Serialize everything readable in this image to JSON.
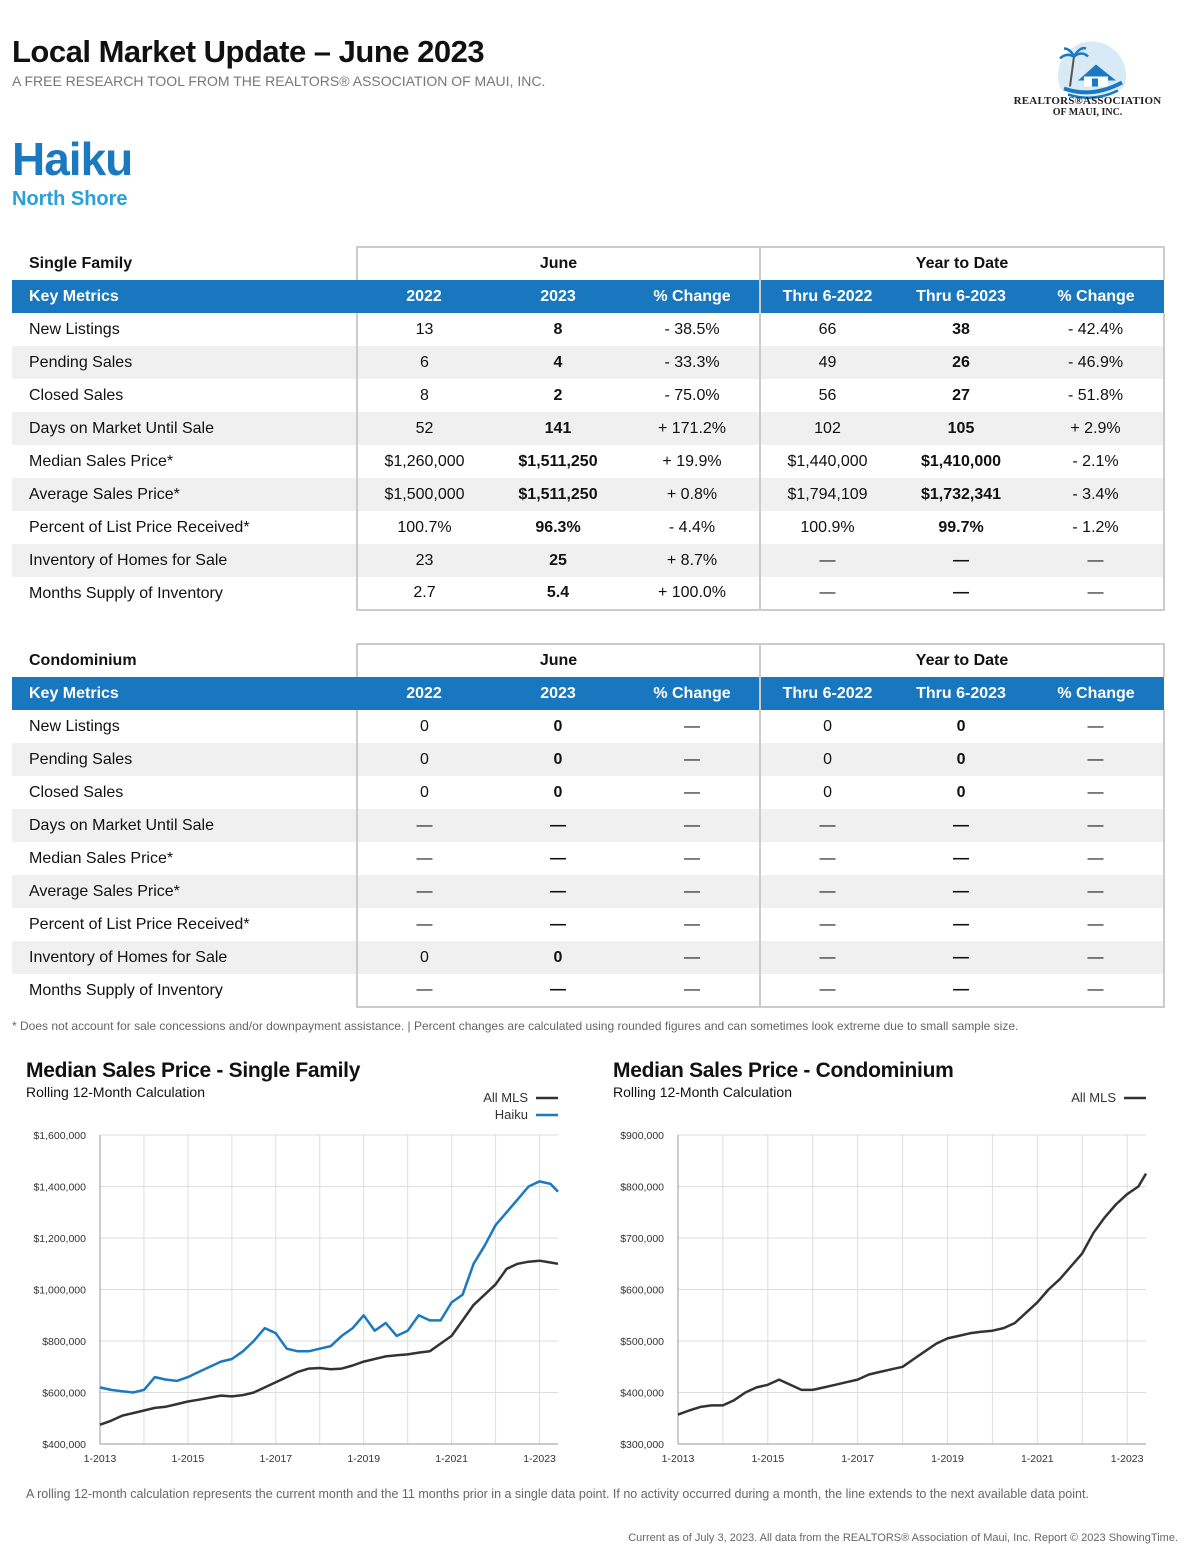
{
  "header": {
    "title": "Local Market Update – June 2023",
    "subtitle": "A FREE RESEARCH TOOL FROM THE REALTORS® ASSOCIATION OF MAUI, INC.",
    "logo_line1": "REALTORS®ASSOCIATION",
    "logo_line2": "OF MAUI, INC."
  },
  "location": {
    "area": "Haiku",
    "region": "North Shore"
  },
  "table_labels": {
    "june": "June",
    "ytd": "Year to Date",
    "key_metrics": "Key Metrics",
    "col_2022": "2022",
    "col_2023": "2023",
    "col_pct": "% Change",
    "col_thru2022": "Thru 6-2022",
    "col_thru2023": "Thru 6-2023"
  },
  "single_family": {
    "name": "Single Family",
    "rows": [
      {
        "label": "New Listings",
        "v2022": "13",
        "v2023": "8",
        "pct": "- 38.5%",
        "ytd2022": "66",
        "ytd2023": "38",
        "ytdpct": "- 42.4%"
      },
      {
        "label": "Pending Sales",
        "v2022": "6",
        "v2023": "4",
        "pct": "- 33.3%",
        "ytd2022": "49",
        "ytd2023": "26",
        "ytdpct": "- 46.9%"
      },
      {
        "label": "Closed Sales",
        "v2022": "8",
        "v2023": "2",
        "pct": "- 75.0%",
        "ytd2022": "56",
        "ytd2023": "27",
        "ytdpct": "- 51.8%"
      },
      {
        "label": "Days on Market Until Sale",
        "v2022": "52",
        "v2023": "141",
        "pct": "+ 171.2%",
        "ytd2022": "102",
        "ytd2023": "105",
        "ytdpct": "+ 2.9%"
      },
      {
        "label": "Median Sales Price*",
        "v2022": "$1,260,000",
        "v2023": "$1,511,250",
        "pct": "+ 19.9%",
        "ytd2022": "$1,440,000",
        "ytd2023": "$1,410,000",
        "ytdpct": "- 2.1%"
      },
      {
        "label": "Average Sales Price*",
        "v2022": "$1,500,000",
        "v2023": "$1,511,250",
        "pct": "+ 0.8%",
        "ytd2022": "$1,794,109",
        "ytd2023": "$1,732,341",
        "ytdpct": "- 3.4%"
      },
      {
        "label": "Percent of List Price Received*",
        "v2022": "100.7%",
        "v2023": "96.3%",
        "pct": "- 4.4%",
        "ytd2022": "100.9%",
        "ytd2023": "99.7%",
        "ytdpct": "- 1.2%"
      },
      {
        "label": "Inventory of Homes for Sale",
        "v2022": "23",
        "v2023": "25",
        "pct": "+ 8.7%",
        "ytd2022": "—",
        "ytd2023": "—",
        "ytdpct": "—"
      },
      {
        "label": "Months Supply of Inventory",
        "v2022": "2.7",
        "v2023": "5.4",
        "pct": "+ 100.0%",
        "ytd2022": "—",
        "ytd2023": "—",
        "ytdpct": "—"
      }
    ]
  },
  "condominium": {
    "name": "Condominium",
    "rows": [
      {
        "label": "New Listings",
        "v2022": "0",
        "v2023": "0",
        "pct": "—",
        "ytd2022": "0",
        "ytd2023": "0",
        "ytdpct": "—"
      },
      {
        "label": "Pending Sales",
        "v2022": "0",
        "v2023": "0",
        "pct": "—",
        "ytd2022": "0",
        "ytd2023": "0",
        "ytdpct": "—"
      },
      {
        "label": "Closed Sales",
        "v2022": "0",
        "v2023": "0",
        "pct": "—",
        "ytd2022": "0",
        "ytd2023": "0",
        "ytdpct": "—"
      },
      {
        "label": "Days on Market Until Sale",
        "v2022": "—",
        "v2023": "—",
        "pct": "—",
        "ytd2022": "—",
        "ytd2023": "—",
        "ytdpct": "—"
      },
      {
        "label": "Median Sales Price*",
        "v2022": "—",
        "v2023": "—",
        "pct": "—",
        "ytd2022": "—",
        "ytd2023": "—",
        "ytdpct": "—"
      },
      {
        "label": "Average Sales Price*",
        "v2022": "—",
        "v2023": "—",
        "pct": "—",
        "ytd2022": "—",
        "ytd2023": "—",
        "ytdpct": "—"
      },
      {
        "label": "Percent of List Price Received*",
        "v2022": "—",
        "v2023": "—",
        "pct": "—",
        "ytd2022": "—",
        "ytd2023": "—",
        "ytdpct": "—"
      },
      {
        "label": "Inventory of Homes for Sale",
        "v2022": "0",
        "v2023": "0",
        "pct": "—",
        "ytd2022": "—",
        "ytd2023": "—",
        "ytdpct": "—"
      },
      {
        "label": "Months Supply of Inventory",
        "v2022": "—",
        "v2023": "—",
        "pct": "—",
        "ytd2022": "—",
        "ytd2023": "—",
        "ytdpct": "—"
      }
    ]
  },
  "footnote": "* Does not account for sale concessions and/or downpayment assistance. | Percent changes are calculated using rounded figures and can sometimes look extreme due to small sample size.",
  "chart_data": [
    {
      "type": "line",
      "title": "Median Sales Price - Single Family",
      "subtitle": "Rolling 12-Month Calculation",
      "ylim": [
        400000,
        1600000
      ],
      "yticks": [
        400000,
        600000,
        800000,
        1000000,
        1200000,
        1400000,
        1600000
      ],
      "ytick_labels": [
        "$400,000",
        "$600,000",
        "$800,000",
        "$1,000,000",
        "$1,200,000",
        "$1,400,000",
        "$1,600,000"
      ],
      "xlim": [
        2013.0,
        2023.42
      ],
      "xtick_values": [
        2013,
        2015,
        2017,
        2019,
        2021,
        2023
      ],
      "xtick_labels": [
        "1-2013",
        "1-2015",
        "1-2017",
        "1-2019",
        "1-2021",
        "1-2023"
      ],
      "grid": true,
      "legend": "top-right",
      "series": [
        {
          "name": "All MLS",
          "color": "#333333",
          "x": [
            2013.0,
            2013.25,
            2013.5,
            2013.75,
            2014.0,
            2014.25,
            2014.5,
            2014.75,
            2015.0,
            2015.25,
            2015.5,
            2015.75,
            2016.0,
            2016.25,
            2016.5,
            2016.75,
            2017.0,
            2017.25,
            2017.5,
            2017.75,
            2018.0,
            2018.25,
            2018.5,
            2018.75,
            2019.0,
            2019.25,
            2019.5,
            2019.75,
            2020.0,
            2020.25,
            2020.5,
            2020.75,
            2021.0,
            2021.25,
            2021.5,
            2021.75,
            2022.0,
            2022.25,
            2022.5,
            2022.75,
            2023.0,
            2023.25,
            2023.42
          ],
          "values": [
            475000,
            490000,
            510000,
            520000,
            530000,
            540000,
            545000,
            555000,
            565000,
            572000,
            580000,
            588000,
            585000,
            590000,
            600000,
            620000,
            640000,
            660000,
            680000,
            693000,
            695000,
            690000,
            693000,
            705000,
            720000,
            730000,
            740000,
            745000,
            748000,
            755000,
            760000,
            790000,
            820000,
            880000,
            940000,
            980000,
            1020000,
            1080000,
            1100000,
            1108000,
            1112000,
            1105000,
            1100000
          ]
        },
        {
          "name": "Haiku",
          "color": "#1a79bf",
          "x": [
            2013.0,
            2013.25,
            2013.5,
            2013.75,
            2014.0,
            2014.25,
            2014.5,
            2014.75,
            2015.0,
            2015.25,
            2015.5,
            2015.75,
            2016.0,
            2016.25,
            2016.5,
            2016.75,
            2017.0,
            2017.25,
            2017.5,
            2017.75,
            2018.0,
            2018.25,
            2018.5,
            2018.75,
            2019.0,
            2019.25,
            2019.5,
            2019.75,
            2020.0,
            2020.25,
            2020.5,
            2020.75,
            2021.0,
            2021.25,
            2021.5,
            2021.75,
            2022.0,
            2022.25,
            2022.5,
            2022.75,
            2023.0,
            2023.25,
            2023.42
          ],
          "values": [
            620000,
            610000,
            605000,
            600000,
            610000,
            660000,
            650000,
            645000,
            660000,
            680000,
            700000,
            720000,
            730000,
            760000,
            800000,
            850000,
            830000,
            770000,
            760000,
            760000,
            770000,
            780000,
            820000,
            850000,
            900000,
            840000,
            870000,
            820000,
            840000,
            900000,
            880000,
            880000,
            950000,
            980000,
            1100000,
            1170000,
            1250000,
            1300000,
            1350000,
            1400000,
            1420000,
            1410000,
            1380000
          ]
        }
      ]
    },
    {
      "type": "line",
      "title": "Median Sales Price - Condominium",
      "subtitle": "Rolling 12-Month Calculation",
      "ylim": [
        300000,
        900000
      ],
      "yticks": [
        300000,
        400000,
        500000,
        600000,
        700000,
        800000,
        900000
      ],
      "ytick_labels": [
        "$300,000",
        "$400,000",
        "$500,000",
        "$600,000",
        "$700,000",
        "$800,000",
        "$900,000"
      ],
      "xlim": [
        2013.0,
        2023.42
      ],
      "xtick_values": [
        2013,
        2015,
        2017,
        2019,
        2021,
        2023
      ],
      "xtick_labels": [
        "1-2013",
        "1-2015",
        "1-2017",
        "1-2019",
        "1-2021",
        "1-2023"
      ],
      "grid": true,
      "legend": "top-right",
      "series": [
        {
          "name": "All MLS",
          "color": "#333333",
          "x": [
            2013.0,
            2013.25,
            2013.5,
            2013.75,
            2014.0,
            2014.25,
            2014.5,
            2014.75,
            2015.0,
            2015.25,
            2015.5,
            2015.75,
            2016.0,
            2016.25,
            2016.5,
            2016.75,
            2017.0,
            2017.25,
            2017.5,
            2017.75,
            2018.0,
            2018.25,
            2018.5,
            2018.75,
            2019.0,
            2019.25,
            2019.5,
            2019.75,
            2020.0,
            2020.25,
            2020.5,
            2020.75,
            2021.0,
            2021.25,
            2021.5,
            2021.75,
            2022.0,
            2022.25,
            2022.5,
            2022.75,
            2023.0,
            2023.25,
            2023.42
          ],
          "values": [
            357000,
            365000,
            372000,
            375000,
            375000,
            385000,
            400000,
            410000,
            415000,
            425000,
            415000,
            405000,
            405000,
            410000,
            415000,
            420000,
            425000,
            435000,
            440000,
            445000,
            450000,
            465000,
            480000,
            495000,
            505000,
            510000,
            515000,
            518000,
            520000,
            525000,
            535000,
            555000,
            575000,
            600000,
            620000,
            645000,
            670000,
            710000,
            740000,
            765000,
            785000,
            800000,
            825000
          ]
        }
      ]
    }
  ],
  "bottom_note": "A rolling 12-month calculation represents the current month and the 11 months prior in a single data point. If no activity occurred during a month, the line extends to the next available data point.",
  "credit": "Current as of July 3, 2023. All data from the REALTORS® Association of Maui, Inc. Report © 2023 ShowingTime."
}
